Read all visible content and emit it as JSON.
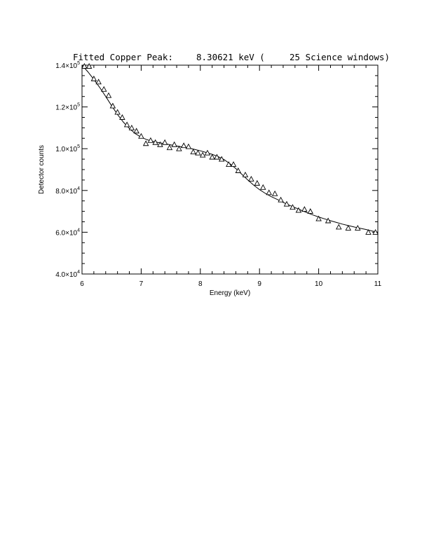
{
  "chart_data": {
    "type": "scatter",
    "title": {
      "prefix": "Fitted Copper Peak:",
      "energy": "8.30621 keV (",
      "windows": "25 Science windows)"
    },
    "xlabel": "Energy (keV)",
    "ylabel": "Detector counts",
    "xlim": [
      6,
      11
    ],
    "ylim": [
      40000,
      140000
    ],
    "x_ticks": [
      6,
      7,
      8,
      9,
      10,
      11
    ],
    "x_tick_labels": [
      "6",
      "7",
      "8",
      "9",
      "10",
      "11"
    ],
    "y_ticks": [
      {
        "value": 40000,
        "mantissa": "4.0×10",
        "exp": "4"
      },
      {
        "value": 60000,
        "mantissa": "6.0×10",
        "exp": "4"
      },
      {
        "value": 80000,
        "mantissa": "8.0×10",
        "exp": "4"
      },
      {
        "value": 100000,
        "mantissa": "1.0×10",
        "exp": "5"
      },
      {
        "value": 120000,
        "mantissa": "1.2×10",
        "exp": "5"
      },
      {
        "value": 140000,
        "mantissa": "1.4×10",
        "exp": "5"
      }
    ],
    "series": [
      {
        "kind": "data",
        "marker": "open-triangle",
        "x": [
          6.04,
          6.12,
          6.2,
          6.28,
          6.37,
          6.45,
          6.52,
          6.6,
          6.68,
          6.76,
          6.84,
          6.92,
          7.0,
          7.08,
          7.16,
          7.24,
          7.32,
          7.4,
          7.48,
          7.56,
          7.64,
          7.72,
          7.8,
          7.88,
          7.96,
          8.04,
          8.12,
          8.2,
          8.28,
          8.36,
          8.48,
          8.56,
          8.64,
          8.76,
          8.86,
          8.96,
          9.06,
          9.16,
          9.26,
          9.36,
          9.46,
          9.56,
          9.66,
          9.76,
          9.86,
          10.0,
          10.16,
          10.34,
          10.5,
          10.66,
          10.84,
          10.96
        ],
        "y": [
          139500,
          139500,
          133500,
          132000,
          128500,
          125500,
          120500,
          117500,
          115000,
          111500,
          110000,
          108500,
          106000,
          102500,
          104000,
          103000,
          102000,
          103000,
          100500,
          102000,
          100000,
          101500,
          101000,
          98500,
          98000,
          97000,
          98000,
          96000,
          96000,
          95000,
          92500,
          92500,
          89500,
          87500,
          85500,
          83500,
          81500,
          79000,
          78500,
          75500,
          73500,
          72000,
          70500,
          71000,
          70000,
          66500,
          65500,
          62500,
          62000,
          62000,
          60000,
          60000
        ]
      },
      {
        "kind": "fit",
        "x": [
          6.0,
          6.1,
          6.2,
          6.3,
          6.4,
          6.5,
          6.6,
          6.7,
          6.8,
          6.9,
          7.0,
          7.1,
          7.2,
          7.3,
          7.4,
          7.5,
          7.6,
          7.7,
          7.8,
          7.9,
          8.0,
          8.1,
          8.2,
          8.3,
          8.4,
          8.5,
          8.6,
          8.7,
          8.8,
          8.9,
          9.0,
          9.1,
          9.2,
          9.3,
          9.4,
          9.5,
          9.6,
          9.7,
          9.8,
          9.9,
          10.0,
          10.1,
          10.2,
          10.3,
          10.4,
          10.5,
          10.6,
          10.7,
          10.8,
          10.9,
          11.0
        ],
        "y": [
          140000,
          136800,
          133200,
          129300,
          125000,
          120600,
          116400,
          112700,
          109700,
          107200,
          105500,
          104300,
          103500,
          102900,
          102400,
          101800,
          101300,
          100800,
          100300,
          99700,
          99000,
          98200,
          97300,
          96200,
          94800,
          92800,
          90500,
          87800,
          85100,
          82600,
          80400,
          78600,
          77000,
          75700,
          74300,
          73000,
          71800,
          70600,
          69400,
          68300,
          67300,
          66400,
          65500,
          64700,
          63900,
          63200,
          62500,
          61900,
          61300,
          60600,
          60000
        ]
      }
    ]
  }
}
